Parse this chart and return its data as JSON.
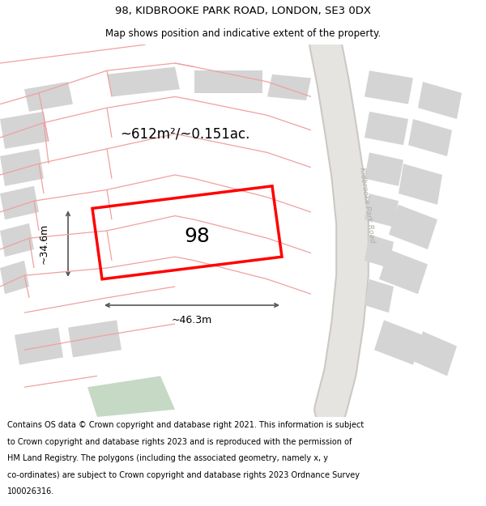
{
  "title_line1": "98, KIDBROOKE PARK ROAD, LONDON, SE3 0DX",
  "title_line2": "Map shows position and indicative extent of the property.",
  "property_number": "98",
  "area_label": "~612m²/~0.151ac.",
  "width_label": "~46.3m",
  "height_label": "~34.6m",
  "road_label": "Kidbrooke Park Road",
  "footer_lines": [
    "Contains OS data © Crown copyright and database right 2021. This information is subject",
    "to Crown copyright and database rights 2023 and is reproduced with the permission of",
    "HM Land Registry. The polygons (including the associated geometry, namely x, y",
    "co-ordinates) are subject to Crown copyright and database rights 2023 Ordnance Survey",
    "100026316."
  ],
  "bg_color": "#f0eeeb",
  "building_fill": "#d4d4d4",
  "pink_line_color": "#f0a0a0",
  "road_band_color": "#e6e4e0",
  "road_edge_color": "#ccc9c4",
  "road_label_color": "#b0aeaa",
  "green_fill": "#c5d9c5",
  "plot_color": "#ff0000",
  "dim_color": "#555555",
  "title_fontsize": 9.5,
  "subtitle_fontsize": 8.5,
  "footer_fontsize": 7.0,
  "number_fontsize": 18,
  "area_fontsize": 12,
  "dim_fontsize": 9
}
